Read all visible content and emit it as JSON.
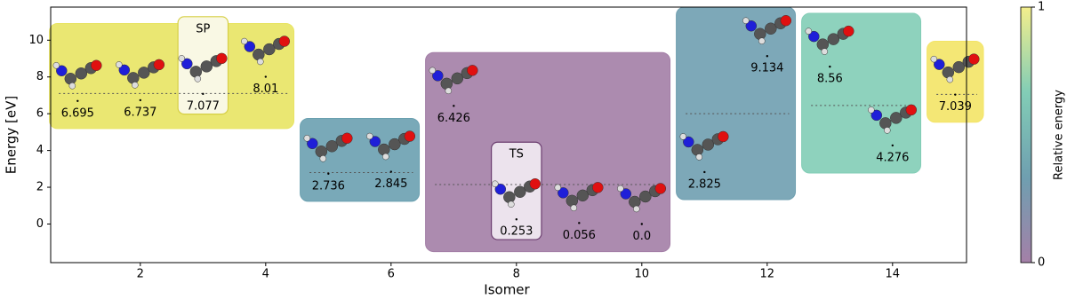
{
  "chart_data": {
    "type": "scatter",
    "x_label": "Isomer",
    "y_label": "Energy [eV]",
    "x": [
      1,
      2,
      3,
      4,
      5,
      6,
      7,
      8,
      9,
      10,
      11,
      12,
      13,
      14,
      15
    ],
    "values": [
      6.695,
      6.737,
      7.077,
      8.01,
      2.736,
      2.845,
      6.426,
      0.253,
      0.056,
      0.0,
      2.825,
      9.134,
      8.56,
      4.276,
      7.039
    ],
    "value_labels": [
      "6.695",
      "6.737",
      "7.077",
      "8.01",
      "2.736",
      "2.845",
      "6.426",
      "0.253",
      "0.056",
      "0.0",
      "2.825",
      "9.134",
      "8.56",
      "4.276",
      "7.039"
    ],
    "xlim": [
      0.57,
      15.18
    ],
    "ylim": [
      -2.1,
      11.8
    ],
    "xticks": [
      2,
      4,
      6,
      8,
      10,
      12,
      14
    ],
    "yticks": [
      0,
      2,
      4,
      6,
      8,
      10
    ],
    "groups": [
      {
        "members": [
          1,
          2,
          3,
          4
        ],
        "level": 7.1,
        "color": "#e8e463"
      },
      {
        "members": [
          5,
          6
        ],
        "level": 2.8,
        "color": "#6aa0b0"
      },
      {
        "members": [
          7,
          8,
          9,
          10
        ],
        "level": 2.15,
        "color": "#a37ea6"
      },
      {
        "members": [
          11,
          12
        ],
        "level": 6.0,
        "color": "#6f9fb0"
      },
      {
        "members": [
          13,
          14
        ],
        "level": 6.45,
        "color": "#82cdb6"
      },
      {
        "members": [
          15
        ],
        "level": 7.05,
        "color": "#f3e466"
      }
    ],
    "annotations": [
      {
        "text": "SP",
        "x": 3,
        "color": "#f9f8e4",
        "edge": "#d6cf45",
        "text_color": "#000000"
      },
      {
        "text": "TS",
        "x": 8,
        "color": "#ece3ed",
        "edge": "#6b3d6f",
        "text_color": "#4b1e5a"
      }
    ],
    "colorbar": {
      "label": "Relative energy",
      "ticks": [
        0,
        1
      ],
      "colors": [
        "#a480a8",
        "#6f9fb0",
        "#82cdb6",
        "#f3ee8c"
      ]
    }
  }
}
